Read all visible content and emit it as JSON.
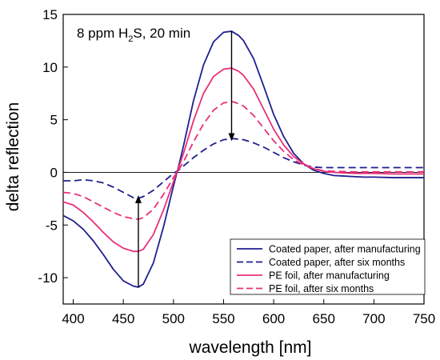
{
  "chart_data": {
    "type": "line",
    "annotation": {
      "prefix": "8 ppm H",
      "subscript": "2",
      "suffix": "S, 20 min"
    },
    "xlabel": "wavelength [nm]",
    "ylabel": "delta reflection",
    "xlim": [
      390,
      750
    ],
    "ylim": [
      -12.5,
      15
    ],
    "xticks": [
      400,
      450,
      500,
      550,
      600,
      650,
      700,
      750
    ],
    "yticks": [
      -10,
      -5,
      0,
      5,
      10,
      15
    ],
    "zero_line": true,
    "grid": false,
    "legend_position": "bottom-right",
    "series": [
      {
        "name": "Coated paper, after manufacturing",
        "color": "#1f1f8f",
        "dash": "solid",
        "x": [
          390,
          400,
          410,
          420,
          430,
          440,
          450,
          460,
          465,
          470,
          480,
          490,
          500,
          505,
          510,
          520,
          530,
          540,
          550,
          558,
          565,
          570,
          580,
          590,
          600,
          610,
          620,
          630,
          640,
          650,
          660,
          670,
          680,
          690,
          700,
          720,
          750
        ],
        "y": [
          -4.1,
          -4.6,
          -5.4,
          -6.5,
          -7.8,
          -9.2,
          -10.3,
          -10.8,
          -10.9,
          -10.6,
          -8.6,
          -5.2,
          -1.3,
          0.5,
          2.5,
          6.8,
          10.2,
          12.4,
          13.3,
          13.4,
          13.0,
          12.5,
          10.8,
          8.2,
          5.5,
          3.4,
          1.8,
          0.8,
          0.2,
          -0.1,
          -0.3,
          -0.35,
          -0.4,
          -0.45,
          -0.45,
          -0.5,
          -0.5
        ]
      },
      {
        "name": "Coated paper, after six months",
        "color": "#1f1f8f",
        "dash": "dashed",
        "x": [
          390,
          400,
          410,
          420,
          430,
          440,
          450,
          460,
          465,
          470,
          480,
          490,
          500,
          505,
          510,
          520,
          530,
          540,
          550,
          560,
          570,
          580,
          590,
          600,
          610,
          620,
          630,
          640,
          650,
          660,
          680,
          700,
          720,
          750
        ],
        "y": [
          -0.8,
          -0.8,
          -0.7,
          -0.8,
          -1.0,
          -1.4,
          -1.9,
          -2.4,
          -2.45,
          -2.3,
          -1.7,
          -0.9,
          -0.1,
          0.2,
          0.6,
          1.4,
          2.1,
          2.7,
          3.1,
          3.2,
          3.1,
          2.8,
          2.4,
          1.9,
          1.4,
          1.0,
          0.7,
          0.5,
          0.45,
          0.45,
          0.45,
          0.45,
          0.45,
          0.45
        ]
      },
      {
        "name": "PE foil, after manufacturing",
        "color": "#e8307a",
        "dash": "solid",
        "x": [
          390,
          400,
          410,
          420,
          430,
          440,
          450,
          460,
          465,
          470,
          480,
          490,
          500,
          505,
          510,
          520,
          530,
          540,
          550,
          558,
          565,
          570,
          580,
          590,
          600,
          610,
          620,
          630,
          640,
          650,
          660,
          680,
          700,
          720,
          750
        ],
        "y": [
          -2.8,
          -3.1,
          -3.8,
          -4.7,
          -5.7,
          -6.6,
          -7.2,
          -7.5,
          -7.5,
          -7.3,
          -5.9,
          -3.6,
          -0.9,
          0.4,
          1.8,
          4.9,
          7.5,
          9.1,
          9.8,
          9.9,
          9.6,
          9.2,
          7.9,
          6.0,
          4.1,
          2.6,
          1.5,
          0.8,
          0.35,
          0.1,
          0.0,
          -0.1,
          -0.1,
          -0.15,
          -0.15
        ]
      },
      {
        "name": "PE foil, after six months",
        "color": "#e8307a",
        "dash": "dashed",
        "x": [
          390,
          400,
          410,
          420,
          430,
          440,
          450,
          460,
          465,
          470,
          480,
          490,
          500,
          505,
          510,
          520,
          530,
          540,
          550,
          560,
          570,
          580,
          590,
          600,
          610,
          620,
          630,
          640,
          650,
          660,
          680,
          700,
          720,
          750
        ],
        "y": [
          -1.9,
          -2.0,
          -2.3,
          -2.8,
          -3.3,
          -3.8,
          -4.2,
          -4.4,
          -4.45,
          -4.3,
          -3.5,
          -2.1,
          -0.5,
          0.2,
          1.0,
          2.9,
          4.6,
          5.9,
          6.6,
          6.7,
          6.3,
          5.4,
          4.2,
          3.0,
          2.0,
          1.2,
          0.7,
          0.35,
          0.15,
          0.1,
          0.05,
          0.05,
          0.05,
          0.05
        ]
      }
    ],
    "arrows": [
      {
        "from": [
          558,
          13.4
        ],
        "to": [
          558,
          3.2
        ],
        "color": "#000000"
      },
      {
        "from": [
          465,
          -10.9
        ],
        "to": [
          465,
          -2.4
        ],
        "color": "#000000"
      }
    ]
  }
}
